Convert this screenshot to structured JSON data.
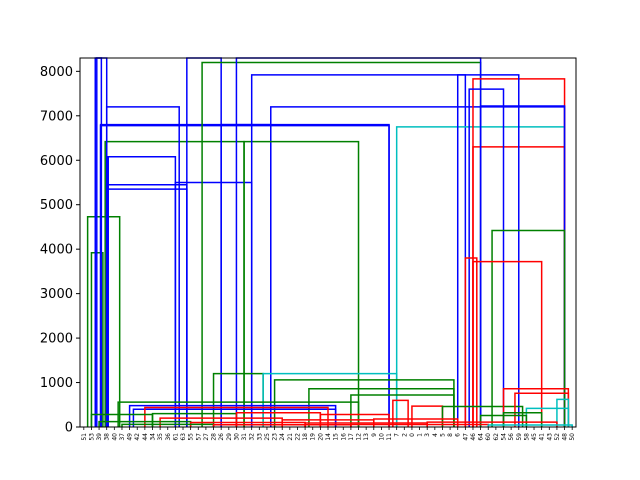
{
  "chart_data": {
    "type": "dendrogram",
    "title": "",
    "xlabel": "",
    "ylabel": "",
    "ylim": [
      0,
      8300
    ],
    "yticks": [
      0,
      1000,
      2000,
      3000,
      4000,
      5000,
      6000,
      7000,
      8000
    ],
    "ytick_labels": [
      "0",
      "1000",
      "2000",
      "3000",
      "4000",
      "5000",
      "6000",
      "7000",
      "8000"
    ],
    "grid": false,
    "colors": {
      "green": "#008000",
      "blue": "#0000ff",
      "red": "#ff0000",
      "cyan": "#00bfbf"
    },
    "leaf_labels": [
      "51",
      "53",
      "39",
      "38",
      "40",
      "37",
      "49",
      "42",
      "44",
      "34",
      "35",
      "36",
      "61",
      "63",
      "55",
      "57",
      "27",
      "28",
      "26",
      "29",
      "30",
      "31",
      "32",
      "33",
      "25",
      "23",
      "24",
      "21",
      "22",
      "18",
      "19",
      "20",
      "14",
      "15",
      "16",
      "17",
      "12",
      "13",
      "9",
      "10",
      "11",
      "7",
      "2",
      "0",
      "1",
      "3",
      "4",
      "5",
      "8",
      "6",
      "47",
      "46",
      "64",
      "60",
      "62",
      "54",
      "56",
      "59",
      "58",
      "45",
      "41",
      "43",
      "52",
      "48",
      "50"
    ],
    "links": [
      {
        "x": [
          0.5,
          4.7
        ],
        "height": 4730,
        "color": "green"
      },
      {
        "x": [
          1.0,
          2.5
        ],
        "height": 3920,
        "color": "green"
      },
      {
        "x": [
          1.5,
          2.3
        ],
        "height": 8300,
        "color": "blue"
      },
      {
        "x": [
          1.7,
          3.0
        ],
        "height": 8300,
        "color": "blue"
      },
      {
        "x": [
          2.2,
          40.0
        ],
        "height": 6800,
        "color": "blue"
      },
      {
        "x": [
          2.2,
          40.0
        ],
        "height": 6780,
        "color": "blue"
      },
      {
        "x": [
          2.8,
          21.0
        ],
        "height": 6420,
        "color": "green"
      },
      {
        "x": [
          3.0,
          12.5
        ],
        "height": 7200,
        "color": "blue"
      },
      {
        "x": [
          3.0,
          13.5
        ],
        "height": 5450,
        "color": "blue"
      },
      {
        "x": [
          3.0,
          13.5
        ],
        "height": 5350,
        "color": "blue"
      },
      {
        "x": [
          3.2,
          12.0
        ],
        "height": 6080,
        "color": "blue"
      },
      {
        "x": [
          12.0,
          22.0
        ],
        "height": 5500,
        "color": "blue"
      },
      {
        "x": [
          13.5,
          18.0
        ],
        "height": 8300,
        "color": "blue"
      },
      {
        "x": [
          18.0,
          24.5
        ],
        "height": 6800,
        "color": "blue"
      },
      {
        "x": [
          24.5,
          63.0
        ],
        "height": 7200,
        "color": "blue"
      },
      {
        "x": [
          21.0,
          36.0
        ],
        "height": 6420,
        "color": "green"
      },
      {
        "x": [
          15.5,
          52.0
        ],
        "height": 8200,
        "color": "green"
      },
      {
        "x": [
          20.0,
          52.0
        ],
        "height": 8300,
        "color": "blue"
      },
      {
        "x": [
          22.0,
          50.0
        ],
        "height": 7920,
        "color": "blue"
      },
      {
        "x": [
          41.0,
          63.0
        ],
        "height": 6750,
        "color": "cyan"
      },
      {
        "x": [
          51.0,
          63.0
        ],
        "height": 7830,
        "color": "red"
      },
      {
        "x": [
          51.0,
          63.0
        ],
        "height": 6300,
        "color": "red"
      },
      {
        "x": [
          52.0,
          63.0
        ],
        "height": 7220,
        "color": "blue"
      },
      {
        "x": [
          50.5,
          55.0
        ],
        "height": 7600,
        "color": "blue"
      },
      {
        "x": [
          49.0,
          57.0
        ],
        "height": 7920,
        "color": "blue"
      },
      {
        "x": [
          53.5,
          63.0
        ],
        "height": 4420,
        "color": "green"
      },
      {
        "x": [
          50.0,
          51.5
        ],
        "height": 3800,
        "color": "red"
      },
      {
        "x": [
          51.0,
          60.0
        ],
        "height": 3720,
        "color": "red"
      },
      {
        "x": [
          17.0,
          23.5
        ],
        "height": 1200,
        "color": "green"
      },
      {
        "x": [
          23.5,
          41.0
        ],
        "height": 1200,
        "color": "cyan"
      },
      {
        "x": [
          25.0,
          48.5
        ],
        "height": 1060,
        "color": "green"
      },
      {
        "x": [
          29.5,
          48.5
        ],
        "height": 860,
        "color": "green"
      },
      {
        "x": [
          35.0,
          48.5
        ],
        "height": 720,
        "color": "green"
      },
      {
        "x": [
          4.5,
          36.0
        ],
        "height": 560,
        "color": "green"
      },
      {
        "x": [
          6.0,
          33.0
        ],
        "height": 480,
        "color": "blue"
      },
      {
        "x": [
          6.5,
          33.0
        ],
        "height": 400,
        "color": "blue"
      },
      {
        "x": [
          8.0,
          32.0
        ],
        "height": 440,
        "color": "red"
      },
      {
        "x": [
          40.5,
          42.5
        ],
        "height": 600,
        "color": "red"
      },
      {
        "x": [
          43.0,
          47.0
        ],
        "height": 470,
        "color": "red"
      },
      {
        "x": [
          47.0,
          57.5
        ],
        "height": 460,
        "color": "green"
      },
      {
        "x": [
          55.0,
          63.5
        ],
        "height": 860,
        "color": "red"
      },
      {
        "x": [
          56.5,
          63.5
        ],
        "height": 760,
        "color": "red"
      },
      {
        "x": [
          62.0,
          63.5
        ],
        "height": 620,
        "color": "cyan"
      },
      {
        "x": [
          58.0,
          63.5
        ],
        "height": 420,
        "color": "cyan"
      },
      {
        "x": [
          55.0,
          60.0
        ],
        "height": 320,
        "color": "green"
      },
      {
        "x": [
          52.0,
          58.0
        ],
        "height": 260,
        "color": "green"
      },
      {
        "x": [
          1.0,
          9.0
        ],
        "height": 280,
        "color": "green"
      },
      {
        "x": [
          9.0,
          20.0
        ],
        "height": 300,
        "color": "green"
      },
      {
        "x": [
          20.0,
          31.0
        ],
        "height": 320,
        "color": "red"
      },
      {
        "x": [
          31.0,
          40.0
        ],
        "height": 280,
        "color": "red"
      },
      {
        "x": [
          10.0,
          26.0
        ],
        "height": 200,
        "color": "red"
      },
      {
        "x": [
          26.0,
          38.0
        ],
        "height": 160,
        "color": "red"
      },
      {
        "x": [
          38.0,
          49.0
        ],
        "height": 180,
        "color": "red"
      },
      {
        "x": [
          2.0,
          14.0
        ],
        "height": 120,
        "color": "green"
      },
      {
        "x": [
          14.0,
          29.0
        ],
        "height": 100,
        "color": "red"
      },
      {
        "x": [
          29.0,
          45.0
        ],
        "height": 90,
        "color": "red"
      },
      {
        "x": [
          45.0,
          62.0
        ],
        "height": 110,
        "color": "red"
      },
      {
        "x": [
          5.0,
          17.0
        ],
        "height": 60,
        "color": "green"
      },
      {
        "x": [
          17.0,
          35.0
        ],
        "height": 50,
        "color": "red"
      },
      {
        "x": [
          35.0,
          53.0
        ],
        "height": 55,
        "color": "red"
      },
      {
        "x": [
          53.0,
          64.0
        ],
        "height": 45,
        "color": "cyan"
      }
    ]
  }
}
